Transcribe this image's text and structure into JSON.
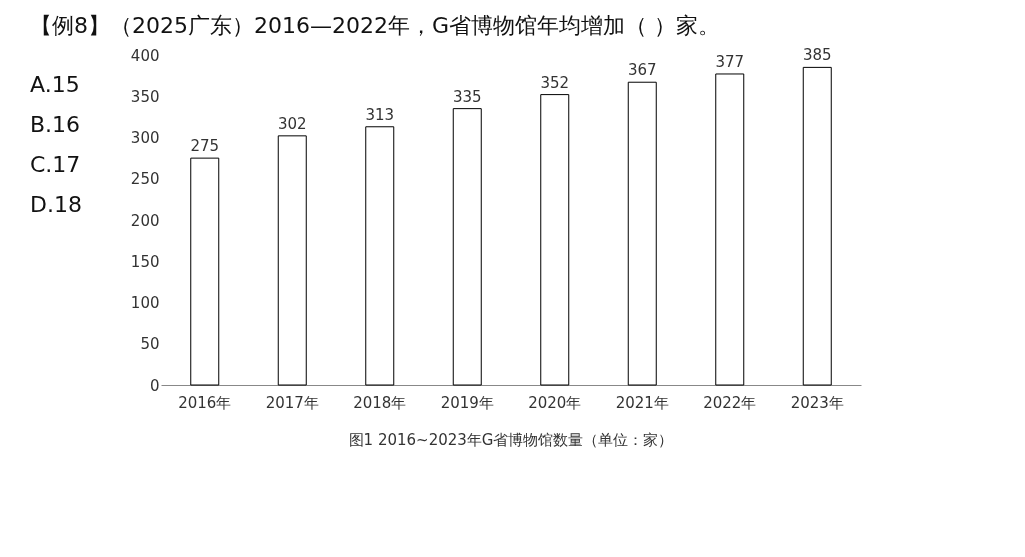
{
  "chart_data": {
    "type": "bar",
    "title": "【例8】（2025广东）2016—2022年，G省博物馆年均增加（    ）家。",
    "categories": [
      "2016年",
      "2017年",
      "2018年",
      "2019年",
      "2020年",
      "2021年",
      "2022年",
      "2023年"
    ],
    "values": [
      275,
      302,
      313,
      335,
      352,
      367,
      377,
      385
    ],
    "color": "#ffffff",
    "ylim": [
      0,
      400
    ],
    "yticks": [
      0,
      50,
      100,
      150,
      200,
      250,
      300,
      350,
      400
    ],
    "grid": false,
    "data_labels": true,
    "annotations": [
      "A.15",
      "B.16",
      "C.17",
      "D.18",
      "图1  2016~2023年G省博物馆数量（单位：家）"
    ]
  }
}
